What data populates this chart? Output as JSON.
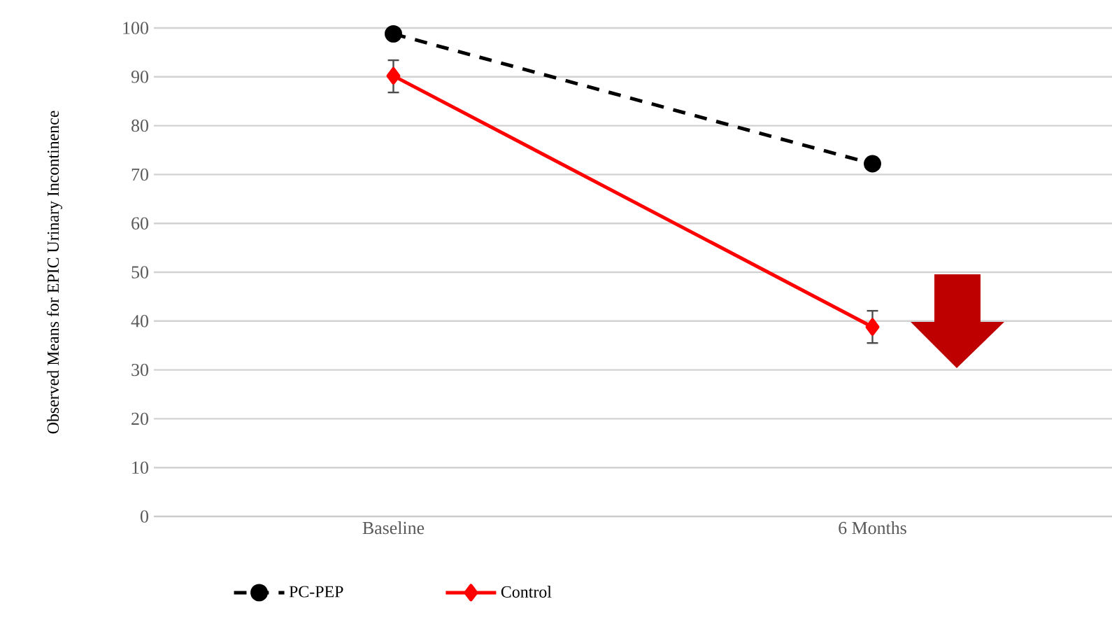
{
  "chart_data": {
    "type": "line",
    "ylabel": "Observed Means for EPIC Urinary Incontinence",
    "categories": [
      "Baseline",
      "6 Months"
    ],
    "series": [
      {
        "name": "PC-PEP",
        "color": "#000000",
        "values": [
          98.8,
          72.2
        ],
        "marker": "circle",
        "line_style": "dashed"
      },
      {
        "name": "Control",
        "color": "#ff0000",
        "values": [
          90.2,
          38.8
        ],
        "marker": "diamond",
        "line_style": "solid",
        "errors": [
          [
            86.8,
            93.4
          ],
          [
            35.5,
            42.1
          ]
        ]
      }
    ],
    "ylim": [
      0,
      100
    ],
    "yticks": [
      0,
      10,
      20,
      30,
      40,
      50,
      60,
      70,
      80,
      90,
      100
    ],
    "grid": "y",
    "legend": "bottom"
  }
}
